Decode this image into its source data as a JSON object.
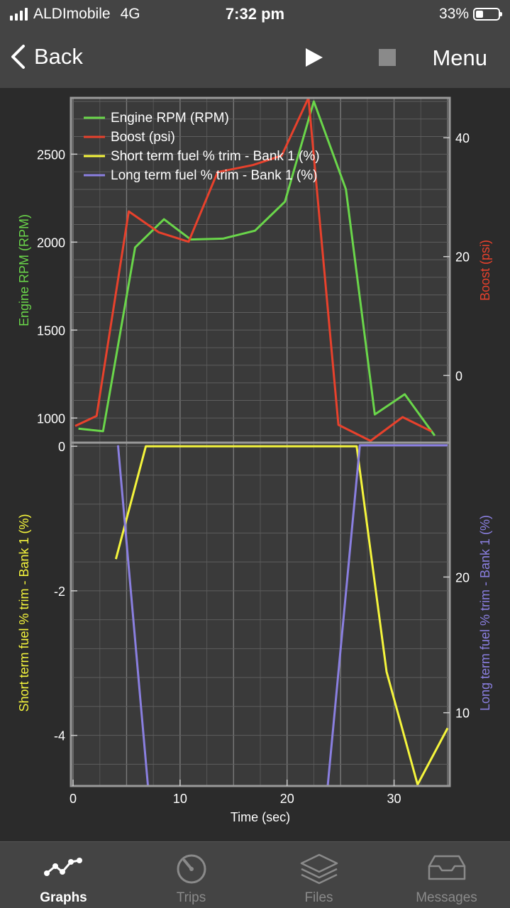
{
  "status_bar": {
    "carrier": "ALDImobile",
    "network": "4G",
    "time": "7:32 pm",
    "battery_percent": "33%",
    "battery_level": 0.33
  },
  "nav": {
    "back_label": "Back",
    "menu_label": "Menu"
  },
  "colors": {
    "rpm": "#6ad64a",
    "boost": "#e8412c",
    "stft": "#f5f53c",
    "ltft": "#8a7fe0",
    "grid": "#6a6a6a",
    "plot_bg": "#3a3a3a"
  },
  "chart_data": [
    {
      "type": "line",
      "legend_position": "top-left",
      "legend": [
        "Engine RPM (RPM)",
        "Boost (psi)",
        "Short term fuel % trim - Bank 1 (%)",
        "Long term fuel % trim - Bank 1 (%)"
      ],
      "ylabel_left": "Engine RPM (RPM)",
      "ylabel_right": "Boost (psi)",
      "y_left_ticks": [
        "1000",
        "1500",
        "2000",
        "2500"
      ],
      "y_right_ticks": [
        "0",
        "20",
        "40"
      ],
      "ylim_left": [
        860,
        2820
      ],
      "ylim_right": [
        -11.3,
        46.7
      ],
      "xlim": [
        -0.2,
        35.2
      ],
      "series": [
        {
          "name": "Engine RPM",
          "axis": "left",
          "x": [
            0.5,
            2.8,
            5.8,
            8.5,
            11,
            14,
            17,
            19.8,
            22.5,
            25.5,
            28.2,
            31,
            33.8
          ],
          "values": [
            940,
            925,
            1970,
            2130,
            2015,
            2020,
            2065,
            2230,
            2800,
            2300,
            1020,
            1135,
            900
          ]
        },
        {
          "name": "Boost",
          "axis": "right",
          "x": [
            0.2,
            2.2,
            5.2,
            8,
            10.8,
            13.5,
            16.8,
            19.5,
            22,
            24.8,
            27.8,
            30.8,
            33.5
          ],
          "values": [
            -8.5,
            -6.8,
            27.6,
            24.1,
            22.5,
            34.2,
            35.4,
            37,
            46.7,
            -8.3,
            -11,
            -7,
            -9.4
          ]
        }
      ]
    },
    {
      "type": "line",
      "ylabel_left": "Short term fuel % trim - Bank 1 (%)",
      "ylabel_right": "Long term fuel % trim - Bank 1 (%)",
      "xlabel": "Time (sec)",
      "x_ticks": [
        "0",
        "10",
        "20",
        "30"
      ],
      "y_left_ticks": [
        "-4",
        "-2",
        "0"
      ],
      "y_right_ticks": [
        "10",
        "20"
      ],
      "ylim_left": [
        -4.7,
        0.05
      ],
      "ylim_right": [
        4.6,
        29.9
      ],
      "xlim": [
        -0.2,
        35.2
      ],
      "series": [
        {
          "name": "Short term fuel % trim - Bank 1",
          "axis": "left",
          "x": [
            4,
            6.8,
            26.5,
            29.3,
            32.2,
            35
          ],
          "values": [
            -1.56,
            0,
            0,
            -3.12,
            -4.68,
            -3.9
          ]
        },
        {
          "name": "Long term fuel % trim - Bank 1",
          "axis": "right",
          "x": [
            4.2,
            7,
            23.8,
            26.8,
            35
          ],
          "values": [
            29.7,
            4.6,
            4.6,
            29.7,
            29.7
          ]
        }
      ]
    }
  ],
  "tabs": [
    {
      "label": "Graphs",
      "icon": "graph-icon",
      "active": true
    },
    {
      "label": "Trips",
      "icon": "gauge-icon",
      "active": false
    },
    {
      "label": "Files",
      "icon": "layers-icon",
      "active": false
    },
    {
      "label": "Messages",
      "icon": "inbox-icon",
      "active": false
    }
  ]
}
